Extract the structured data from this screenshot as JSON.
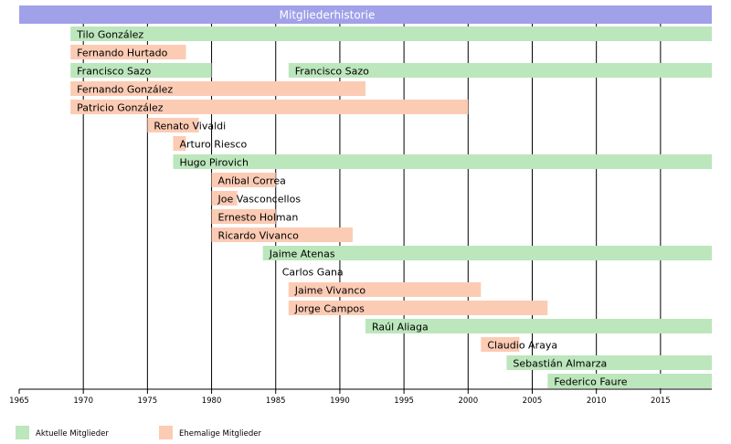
{
  "chart_data": {
    "type": "timeline",
    "title": "Mitgliederhistorie",
    "xlim": [
      1965,
      2019
    ],
    "ticks": [
      1965,
      1970,
      1975,
      1980,
      1985,
      1990,
      1995,
      2000,
      2005,
      2010,
      2015
    ],
    "vertical_gridlines": [
      1970,
      1975,
      1980,
      1985,
      1990,
      1995,
      2000,
      2005,
      2010,
      2015
    ],
    "legend": [
      {
        "key": "current",
        "label": "Aktuelle Mitglieder",
        "color": "#bce6bc"
      },
      {
        "key": "former",
        "label": "Ehemalige Mitglieder",
        "color": "#fccbb4"
      }
    ],
    "colors": {
      "title_bar": "#a1a1e9",
      "current": "#bce6bc",
      "former": "#fccbb4"
    },
    "rows": [
      {
        "bars": [
          {
            "label": "Tilo González",
            "start": 1969,
            "end": 2019,
            "status": "current"
          }
        ]
      },
      {
        "bars": [
          {
            "label": "Fernando Hurtado",
            "start": 1969,
            "end": 1978,
            "status": "former"
          }
        ]
      },
      {
        "bars": [
          {
            "label": "Francisco Sazo",
            "start": 1969,
            "end": 1980,
            "status": "current"
          },
          {
            "label": "Francisco Sazo",
            "start": 1986,
            "end": 2019,
            "status": "current"
          }
        ]
      },
      {
        "bars": [
          {
            "label": "Fernando González",
            "start": 1969,
            "end": 1992,
            "status": "former"
          }
        ]
      },
      {
        "bars": [
          {
            "label": "Patricio González",
            "start": 1969,
            "end": 2000,
            "status": "former"
          }
        ]
      },
      {
        "bars": [
          {
            "label": "Renato Vivaldi",
            "start": 1975,
            "end": 1979,
            "status": "former"
          }
        ]
      },
      {
        "bars": [
          {
            "label": "Arturo Riesco",
            "start": 1977,
            "end": 1978,
            "status": "former"
          }
        ]
      },
      {
        "bars": [
          {
            "label": "Hugo Pirovich",
            "start": 1977,
            "end": 2019,
            "status": "current"
          }
        ]
      },
      {
        "bars": [
          {
            "label": "Aníbal Correa",
            "start": 1980,
            "end": 1985,
            "status": "former"
          }
        ]
      },
      {
        "bars": [
          {
            "label": "Joe Vasconcellos",
            "start": 1980,
            "end": 1982,
            "status": "former"
          }
        ]
      },
      {
        "bars": [
          {
            "label": "Ernesto Holman",
            "start": 1980,
            "end": 1985,
            "status": "former"
          }
        ]
      },
      {
        "bars": [
          {
            "label": "Ricardo Vivanco",
            "start": 1980,
            "end": 1991,
            "status": "former"
          }
        ]
      },
      {
        "bars": [
          {
            "label": "Jaime Atenas",
            "start": 1984,
            "end": 2019,
            "status": "current"
          }
        ]
      },
      {
        "bars": [
          {
            "label": "Carlos Gana",
            "start": 1985,
            "end": 1985,
            "status": "former"
          }
        ]
      },
      {
        "bars": [
          {
            "label": "Jaime Vivanco",
            "start": 1986,
            "end": 2001,
            "status": "former"
          }
        ]
      },
      {
        "bars": [
          {
            "label": "Jorge Campos",
            "start": 1986,
            "end": 2006.2,
            "status": "former"
          }
        ]
      },
      {
        "bars": [
          {
            "label": "Raúl Aliaga",
            "start": 1992,
            "end": 2019,
            "status": "current"
          }
        ]
      },
      {
        "bars": [
          {
            "label": "Claudio Araya",
            "start": 2001,
            "end": 2004,
            "status": "former"
          }
        ]
      },
      {
        "bars": [
          {
            "label": "Sebastián Almarza",
            "start": 2003,
            "end": 2019,
            "status": "current"
          }
        ]
      },
      {
        "bars": [
          {
            "label": "Federico Faure",
            "start": 2006.2,
            "end": 2019,
            "status": "current"
          }
        ]
      }
    ]
  }
}
